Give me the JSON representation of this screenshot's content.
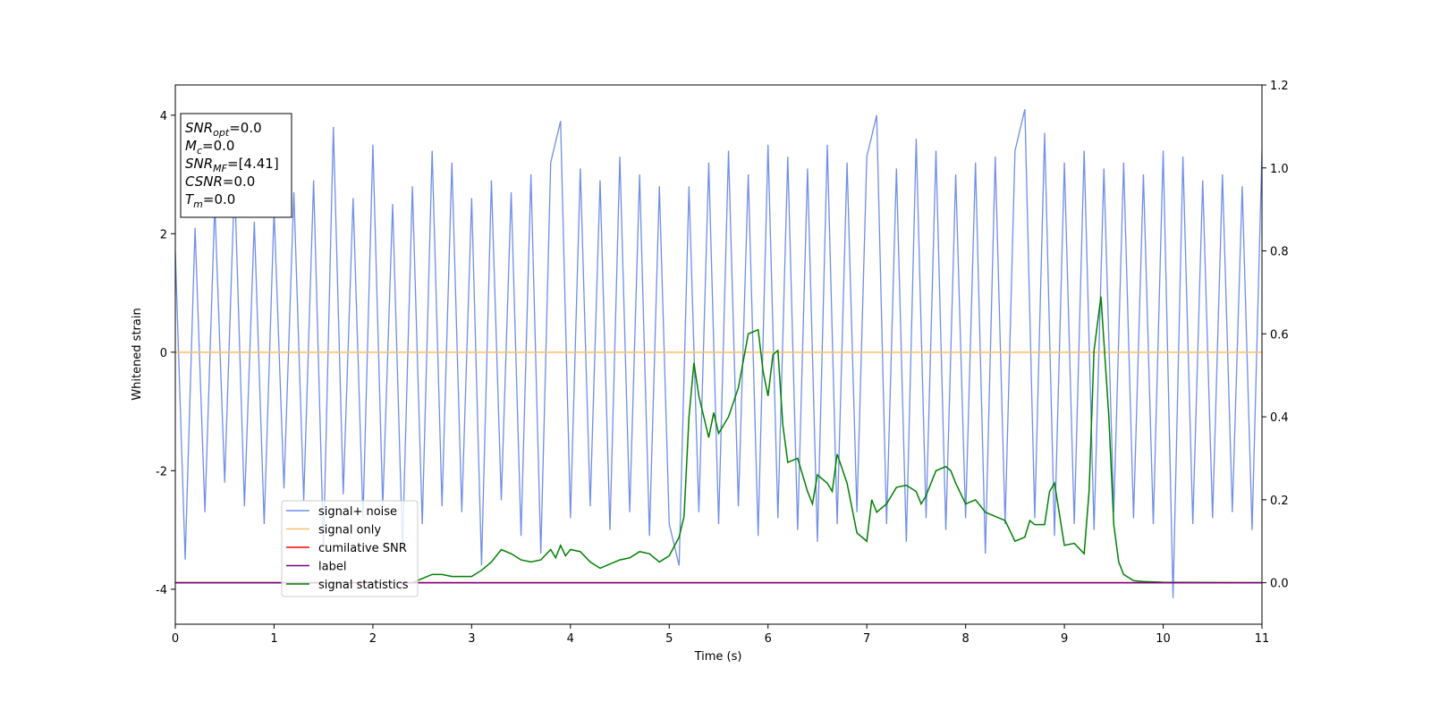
{
  "chart_data": {
    "type": "line",
    "xlabel": "Time (s)",
    "ylabel": "Whitened strain",
    "xlim": [
      0,
      11
    ],
    "xticks": [
      0,
      1,
      2,
      3,
      4,
      5,
      6,
      7,
      8,
      9,
      10,
      11
    ],
    "ylim": [
      -4.59,
      4.51
    ],
    "yticks": [
      -4,
      -2,
      0,
      2,
      4
    ],
    "y2lim": [
      -0.1,
      1.2
    ],
    "y2ticks": [
      {
        "value": 0,
        "label": "0.0"
      },
      0.2,
      0.4,
      0.6,
      0.8,
      {
        "value": 1,
        "label": "1.0"
      },
      1.2
    ],
    "annotation": [
      {
        "base": "SNR",
        "sub": "opt",
        "text": "=0.0"
      },
      {
        "base": "M",
        "sub": "c",
        "text": "=0.0"
      },
      {
        "base": "SNR",
        "sub": "MF",
        "text": "=[4.41]"
      },
      {
        "base": "CSNR",
        "sub": "",
        "text": "=0.0"
      },
      {
        "base": "T",
        "sub": "m",
        "text": "=0.0"
      }
    ],
    "series": [
      {
        "name": "signal+ noise",
        "color": "#6f8ee8",
        "axis": "y",
        "x": [
          0,
          0.1,
          0.2,
          0.3,
          0.4,
          0.5,
          0.6,
          0.7,
          0.8,
          0.9,
          1,
          1.1,
          1.2,
          1.3,
          1.4,
          1.5,
          1.6,
          1.7,
          1.8,
          1.9,
          2,
          2.1,
          2.2,
          2.3,
          2.4,
          2.5,
          2.6,
          2.7,
          2.8,
          2.9,
          3,
          3.1,
          3.2,
          3.3,
          3.4,
          3.5,
          3.6,
          3.7,
          3.8,
          3.9,
          4,
          4.1,
          4.2,
          4.3,
          4.4,
          4.5,
          4.6,
          4.7,
          4.8,
          4.9,
          5,
          5.1,
          5.2,
          5.3,
          5.4,
          5.5,
          5.6,
          5.7,
          5.8,
          5.9,
          6,
          6.1,
          6.2,
          6.3,
          6.4,
          6.5,
          6.6,
          6.7,
          6.8,
          6.9,
          7,
          7.1,
          7.2,
          7.3,
          7.4,
          7.5,
          7.6,
          7.7,
          7.8,
          7.9,
          8,
          8.1,
          8.2,
          8.3,
          8.4,
          8.5,
          8.6,
          8.7,
          8.8,
          8.9,
          9,
          9.1,
          9.2,
          9.3,
          9.4,
          9.5,
          9.6,
          9.7,
          9.8,
          9.9,
          10,
          10.1,
          10.2,
          10.3,
          10.4,
          10.5,
          10.6,
          10.7,
          10.8,
          10.9,
          11
        ],
        "values": [
          1.7,
          -3.5,
          2.1,
          -2.7,
          2.5,
          -2.2,
          2.9,
          -2.6,
          2.2,
          -2.9,
          2.4,
          -2.3,
          2.7,
          -2.5,
          2.9,
          -3.3,
          3.8,
          -2.4,
          2.6,
          -2.8,
          3.5,
          -2.6,
          2.5,
          -3.3,
          2.8,
          -2.9,
          3.4,
          -2.6,
          3.2,
          -2.7,
          2.6,
          -3.6,
          2.9,
          -2.5,
          2.7,
          -3.1,
          3.0,
          -3.4,
          3.2,
          3.9,
          -2.8,
          3.1,
          -2.6,
          2.9,
          -3.0,
          3.3,
          -2.7,
          3.0,
          -3.1,
          2.8,
          -2.9,
          -3.6,
          2.8,
          -2.7,
          3.2,
          -2.9,
          3.4,
          -2.6,
          3.0,
          -3.1,
          3.5,
          -2.8,
          3.3,
          -3.0,
          3.1,
          -3.2,
          3.5,
          -2.9,
          3.2,
          -2.7,
          3.3,
          4.0,
          -2.9,
          3.1,
          -3.2,
          3.6,
          -2.8,
          3.4,
          -3.0,
          3.0,
          -2.8,
          3.2,
          -3.4,
          3.3,
          -2.9,
          3.4,
          4.1,
          -2.8,
          3.7,
          -3.1,
          3.2,
          -2.9,
          3.4,
          -3.0,
          3.1,
          -2.7,
          3.2,
          -2.8,
          3.0,
          -2.9,
          3.4,
          -4.15,
          3.3,
          -2.9,
          2.9,
          -2.8,
          3.0,
          -2.7,
          2.8,
          -3.0,
          3.4
        ]
      },
      {
        "name": "signal only",
        "color": "#ffbe6a",
        "axis": "y",
        "x": [
          0,
          11
        ],
        "values": [
          0,
          0
        ]
      },
      {
        "name": "cumilative SNR",
        "color": "#ff0000",
        "axis": "y2",
        "x": [
          0,
          11
        ],
        "values": [
          0,
          0
        ]
      },
      {
        "name": "label",
        "color": "#800080",
        "axis": "y2",
        "x": [
          0,
          11
        ],
        "values": [
          0,
          0
        ]
      },
      {
        "name": "signal statistics",
        "color": "#008000",
        "axis": "y2",
        "x": [
          0,
          2.4,
          2.5,
          2.6,
          2.7,
          2.8,
          2.9,
          3,
          3.1,
          3.2,
          3.3,
          3.4,
          3.5,
          3.6,
          3.7,
          3.8,
          3.85,
          3.9,
          3.95,
          4,
          4.1,
          4.2,
          4.3,
          4.4,
          4.5,
          4.6,
          4.7,
          4.8,
          4.9,
          5,
          5.1,
          5.15,
          5.2,
          5.25,
          5.3,
          5.4,
          5.45,
          5.5,
          5.6,
          5.7,
          5.8,
          5.9,
          5.95,
          6,
          6.05,
          6.1,
          6.15,
          6.2,
          6.3,
          6.4,
          6.45,
          6.5,
          6.6,
          6.65,
          6.7,
          6.8,
          6.9,
          7,
          7.05,
          7.1,
          7.2,
          7.3,
          7.4,
          7.5,
          7.55,
          7.6,
          7.7,
          7.8,
          7.85,
          7.9,
          8,
          8.1,
          8.2,
          8.3,
          8.4,
          8.5,
          8.6,
          8.65,
          8.7,
          8.8,
          8.85,
          8.9,
          9,
          9.1,
          9.2,
          9.25,
          9.3,
          9.37,
          9.45,
          9.5,
          9.55,
          9.6,
          9.7,
          9.8,
          10,
          11
        ],
        "values": [
          0,
          0,
          0.01,
          0.02,
          0.02,
          0.015,
          0.015,
          0.015,
          0.03,
          0.05,
          0.08,
          0.07,
          0.055,
          0.05,
          0.055,
          0.08,
          0.06,
          0.09,
          0.065,
          0.08,
          0.075,
          0.05,
          0.035,
          0.045,
          0.055,
          0.06,
          0.075,
          0.07,
          0.05,
          0.065,
          0.11,
          0.16,
          0.4,
          0.53,
          0.45,
          0.35,
          0.41,
          0.36,
          0.4,
          0.47,
          0.6,
          0.61,
          0.51,
          0.45,
          0.55,
          0.56,
          0.38,
          0.29,
          0.3,
          0.22,
          0.19,
          0.26,
          0.24,
          0.22,
          0.31,
          0.24,
          0.12,
          0.1,
          0.2,
          0.17,
          0.19,
          0.23,
          0.235,
          0.22,
          0.19,
          0.21,
          0.27,
          0.28,
          0.27,
          0.24,
          0.19,
          0.2,
          0.17,
          0.16,
          0.15,
          0.1,
          0.11,
          0.15,
          0.14,
          0.14,
          0.22,
          0.24,
          0.09,
          0.095,
          0.07,
          0.22,
          0.56,
          0.69,
          0.4,
          0.14,
          0.05,
          0.02,
          0.005,
          0.003,
          0.001,
          0
        ]
      }
    ]
  }
}
